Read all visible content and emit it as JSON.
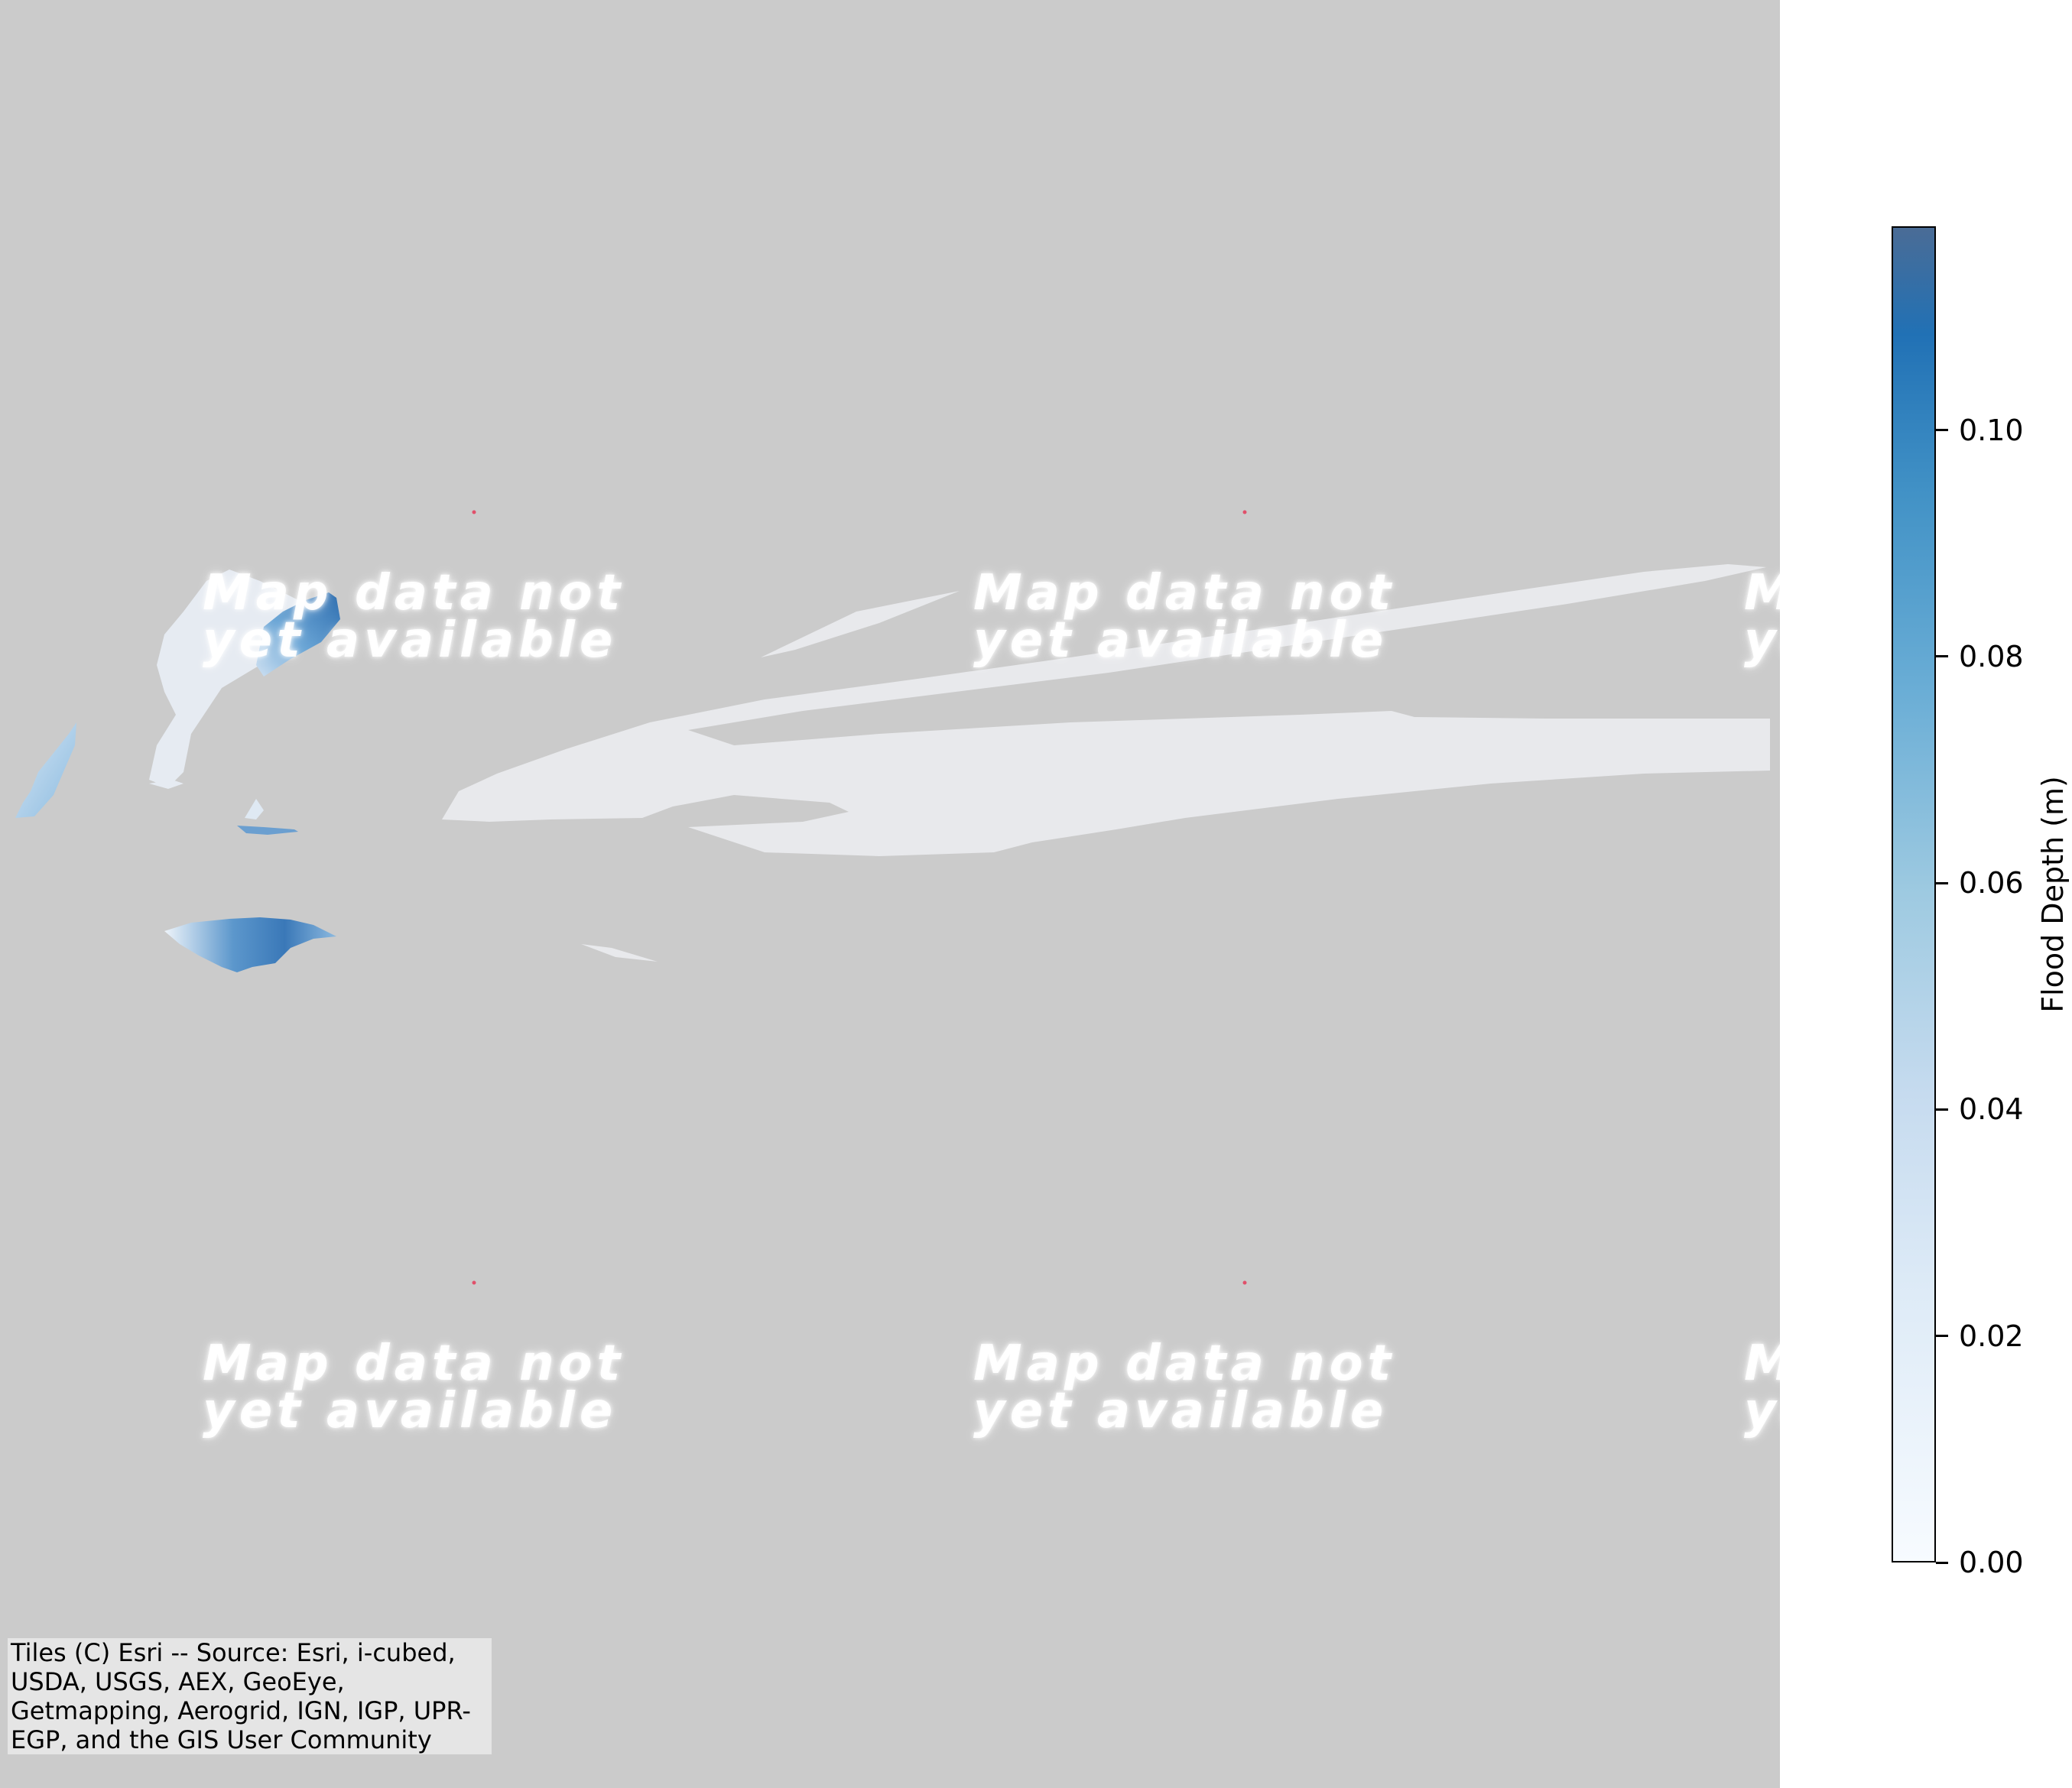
{
  "map": {
    "background_color": "#cbcbcb",
    "tile_message_line1": "Map data not",
    "tile_message_line2": "yet available",
    "attribution": "Tiles (C) Esri -- Source: Esri, i-cubed, USDA, USGS, AEX, GeoEye, Getmapping, Aerogrid, IGN, IGP, UPR-EGP, and the GIS User Community"
  },
  "colorbar": {
    "label": "Flood Depth (m)",
    "ticks": [
      "0.00",
      "0.02",
      "0.04",
      "0.06",
      "0.08",
      "0.10"
    ],
    "tick_values": [
      0.0,
      0.02,
      0.04,
      0.06,
      0.08,
      0.1
    ],
    "max": 0.118,
    "colormap": "Blues",
    "color_low": "#f7fbff",
    "color_high": "#4a6c96"
  },
  "flood_area_color": "#e8e9ec"
}
